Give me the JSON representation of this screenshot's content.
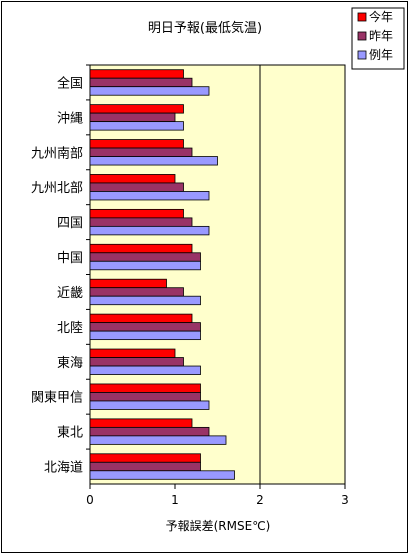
{
  "chart_data": {
    "type": "bar",
    "orientation": "horizontal",
    "title": "明日予報(最低気温)",
    "xlabel": "予報誤差(RMSE℃)",
    "ylabel": "",
    "xlim": [
      0,
      3
    ],
    "xticks": [
      "0",
      "1",
      "2",
      "3"
    ],
    "grid": "vertical gridline at 2",
    "plot_background": "#ffffcc",
    "legend_position": "top-right",
    "categories": [
      "全国",
      "沖縄",
      "九州南部",
      "九州北部",
      "四国",
      "中国",
      "近畿",
      "北陸",
      "東海",
      "関東甲信",
      "東北",
      "北海道"
    ],
    "series": [
      {
        "name": "今年",
        "color": "#ff0000",
        "values": [
          1.1,
          1.1,
          1.1,
          1.0,
          1.1,
          1.2,
          0.9,
          1.2,
          1.0,
          1.3,
          1.2,
          1.3
        ]
      },
      {
        "name": "昨年",
        "color": "#993366",
        "values": [
          1.2,
          1.0,
          1.2,
          1.1,
          1.2,
          1.3,
          1.1,
          1.3,
          1.1,
          1.3,
          1.4,
          1.3
        ]
      },
      {
        "name": "例年",
        "color": "#9999ff",
        "values": [
          1.4,
          1.1,
          1.5,
          1.4,
          1.4,
          1.3,
          1.3,
          1.3,
          1.3,
          1.4,
          1.6,
          1.7
        ]
      }
    ]
  }
}
